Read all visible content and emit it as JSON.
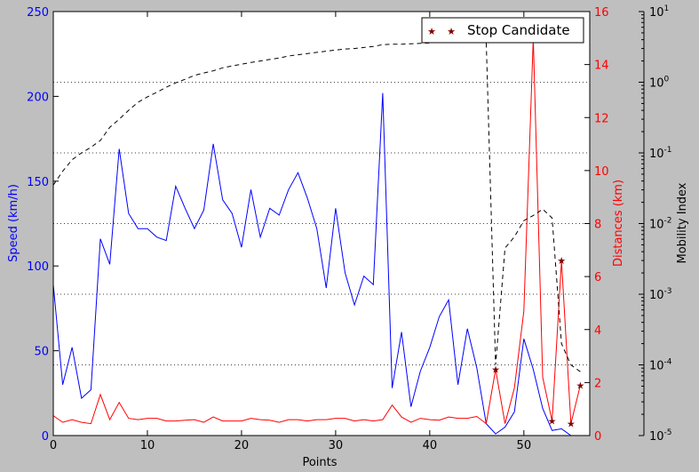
{
  "chart_data": {
    "type": "line",
    "x_axis": {
      "label": "Points",
      "range": [
        0,
        57
      ],
      "ticks": [
        0,
        10,
        20,
        30,
        40,
        50
      ],
      "tick_labels": [
        "0",
        "10",
        "20",
        "30",
        "40",
        "50"
      ]
    },
    "y_left": {
      "label": "Speed (km/h)",
      "color": "#0000ff",
      "range": [
        0,
        250
      ],
      "ticks": [
        0,
        50,
        100,
        150,
        200,
        250
      ],
      "tick_labels": [
        "0",
        "50",
        "100",
        "150",
        "200",
        "250"
      ]
    },
    "y_right": {
      "label": "Distances (km)",
      "color": "#ff0000",
      "range": [
        0,
        16
      ],
      "ticks": [
        0,
        2,
        4,
        6,
        8,
        10,
        12,
        14,
        16
      ],
      "tick_labels": [
        "0",
        "2",
        "4",
        "6",
        "8",
        "10",
        "12",
        "14",
        "16"
      ]
    },
    "y_far_right": {
      "label": "Mobility Index",
      "scale": "log",
      "range": [
        1e-05,
        10
      ],
      "ticks": [
        1e-05,
        0.0001,
        0.001,
        0.01,
        0.1,
        1,
        10
      ],
      "tick_base": "10",
      "tick_exponents": [
        "-5",
        "-4",
        "-3",
        "-2",
        "-1",
        "0",
        "1"
      ]
    },
    "grid": "horizontal dotted on mobility index decades",
    "legend": {
      "position": "top-right",
      "entries": [
        "Stop Candidate"
      ]
    },
    "series": [
      {
        "name": "Speed",
        "axis": "left",
        "color": "#0000ff",
        "style": "solid",
        "x": [
          0,
          1,
          2,
          3,
          4,
          5,
          6,
          7,
          8,
          9,
          10,
          11,
          12,
          13,
          14,
          15,
          16,
          17,
          18,
          19,
          20,
          21,
          22,
          23,
          24,
          25,
          26,
          27,
          28,
          29,
          30,
          31,
          32,
          33,
          34,
          35,
          36,
          37,
          38,
          39,
          40,
          41,
          42,
          43,
          44,
          45,
          46,
          47,
          48,
          49,
          50,
          51,
          52,
          53,
          54,
          55,
          56
        ],
        "values": [
          89,
          30,
          52,
          22,
          27,
          116,
          101,
          169,
          131,
          122,
          122,
          117,
          115,
          147,
          134,
          122,
          133,
          172,
          139,
          131,
          111,
          145,
          117,
          134,
          130,
          145,
          155,
          140,
          122,
          87,
          134,
          96,
          77,
          94,
          89,
          202,
          28,
          61,
          17,
          38,
          52,
          70,
          80,
          30,
          63,
          40,
          7,
          1,
          5,
          14,
          57,
          39,
          16,
          3,
          4,
          0,
          0
        ]
      },
      {
        "name": "Distances",
        "axis": "right",
        "color": "#ff0000",
        "style": "solid",
        "x": [
          0,
          1,
          2,
          3,
          4,
          5,
          6,
          7,
          8,
          9,
          10,
          11,
          12,
          13,
          14,
          15,
          16,
          17,
          18,
          19,
          20,
          21,
          22,
          23,
          24,
          25,
          26,
          27,
          28,
          29,
          30,
          31,
          32,
          33,
          34,
          35,
          36,
          37,
          38,
          39,
          40,
          41,
          42,
          43,
          44,
          45,
          46,
          47,
          48,
          49,
          50,
          51,
          52,
          53,
          54,
          55,
          56
        ],
        "values": [
          0.75,
          0.5,
          0.6,
          0.5,
          0.45,
          1.55,
          0.6,
          1.25,
          0.65,
          0.6,
          0.65,
          0.65,
          0.55,
          0.55,
          0.58,
          0.6,
          0.5,
          0.7,
          0.55,
          0.55,
          0.55,
          0.65,
          0.6,
          0.58,
          0.5,
          0.6,
          0.6,
          0.55,
          0.6,
          0.6,
          0.65,
          0.65,
          0.55,
          0.6,
          0.55,
          0.6,
          1.15,
          0.7,
          0.5,
          0.65,
          0.6,
          0.58,
          0.7,
          0.65,
          0.65,
          0.72,
          0.45,
          2.5,
          0.45,
          1.8,
          4.7,
          15.0,
          2.2,
          0.55,
          6.6,
          0.45,
          1.9
        ]
      },
      {
        "name": "Mobility Index",
        "axis": "far_right",
        "color": "#000000",
        "style": "dashed",
        "x": [
          0,
          1,
          2,
          3,
          4,
          5,
          6,
          7,
          8,
          9,
          10,
          11,
          12,
          13,
          14,
          15,
          16,
          17,
          18,
          19,
          20,
          21,
          22,
          23,
          24,
          25,
          26,
          27,
          28,
          29,
          30,
          31,
          32,
          33,
          34,
          35,
          36,
          37,
          38,
          39,
          40,
          41,
          42,
          43,
          44,
          45,
          46,
          47,
          48,
          49,
          50,
          51,
          52,
          53,
          54,
          55,
          56
        ],
        "values": [
          0.035,
          0.055,
          0.08,
          0.1,
          0.12,
          0.15,
          0.23,
          0.3,
          0.4,
          0.52,
          0.62,
          0.72,
          0.85,
          0.98,
          1.1,
          1.25,
          1.35,
          1.45,
          1.6,
          1.7,
          1.8,
          1.9,
          2.0,
          2.1,
          2.2,
          2.35,
          2.45,
          2.55,
          2.65,
          2.75,
          2.85,
          2.95,
          3.0,
          3.1,
          3.2,
          3.4,
          3.45,
          3.45,
          3.5,
          3.55,
          3.6,
          3.7,
          3.75,
          3.8,
          3.85,
          3.9,
          3.9,
          0.0001,
          0.0045,
          0.0065,
          0.011,
          0.013,
          0.016,
          0.012,
          0.0002,
          0.0001,
          8e-05
        ]
      },
      {
        "name": "Stop Candidate",
        "axis": "right",
        "color": "#800000",
        "marker": "star",
        "x": [
          47,
          51,
          53,
          54,
          55,
          56
        ],
        "values": [
          2.5,
          15.0,
          0.55,
          6.6,
          0.45,
          1.9
        ]
      }
    ]
  }
}
